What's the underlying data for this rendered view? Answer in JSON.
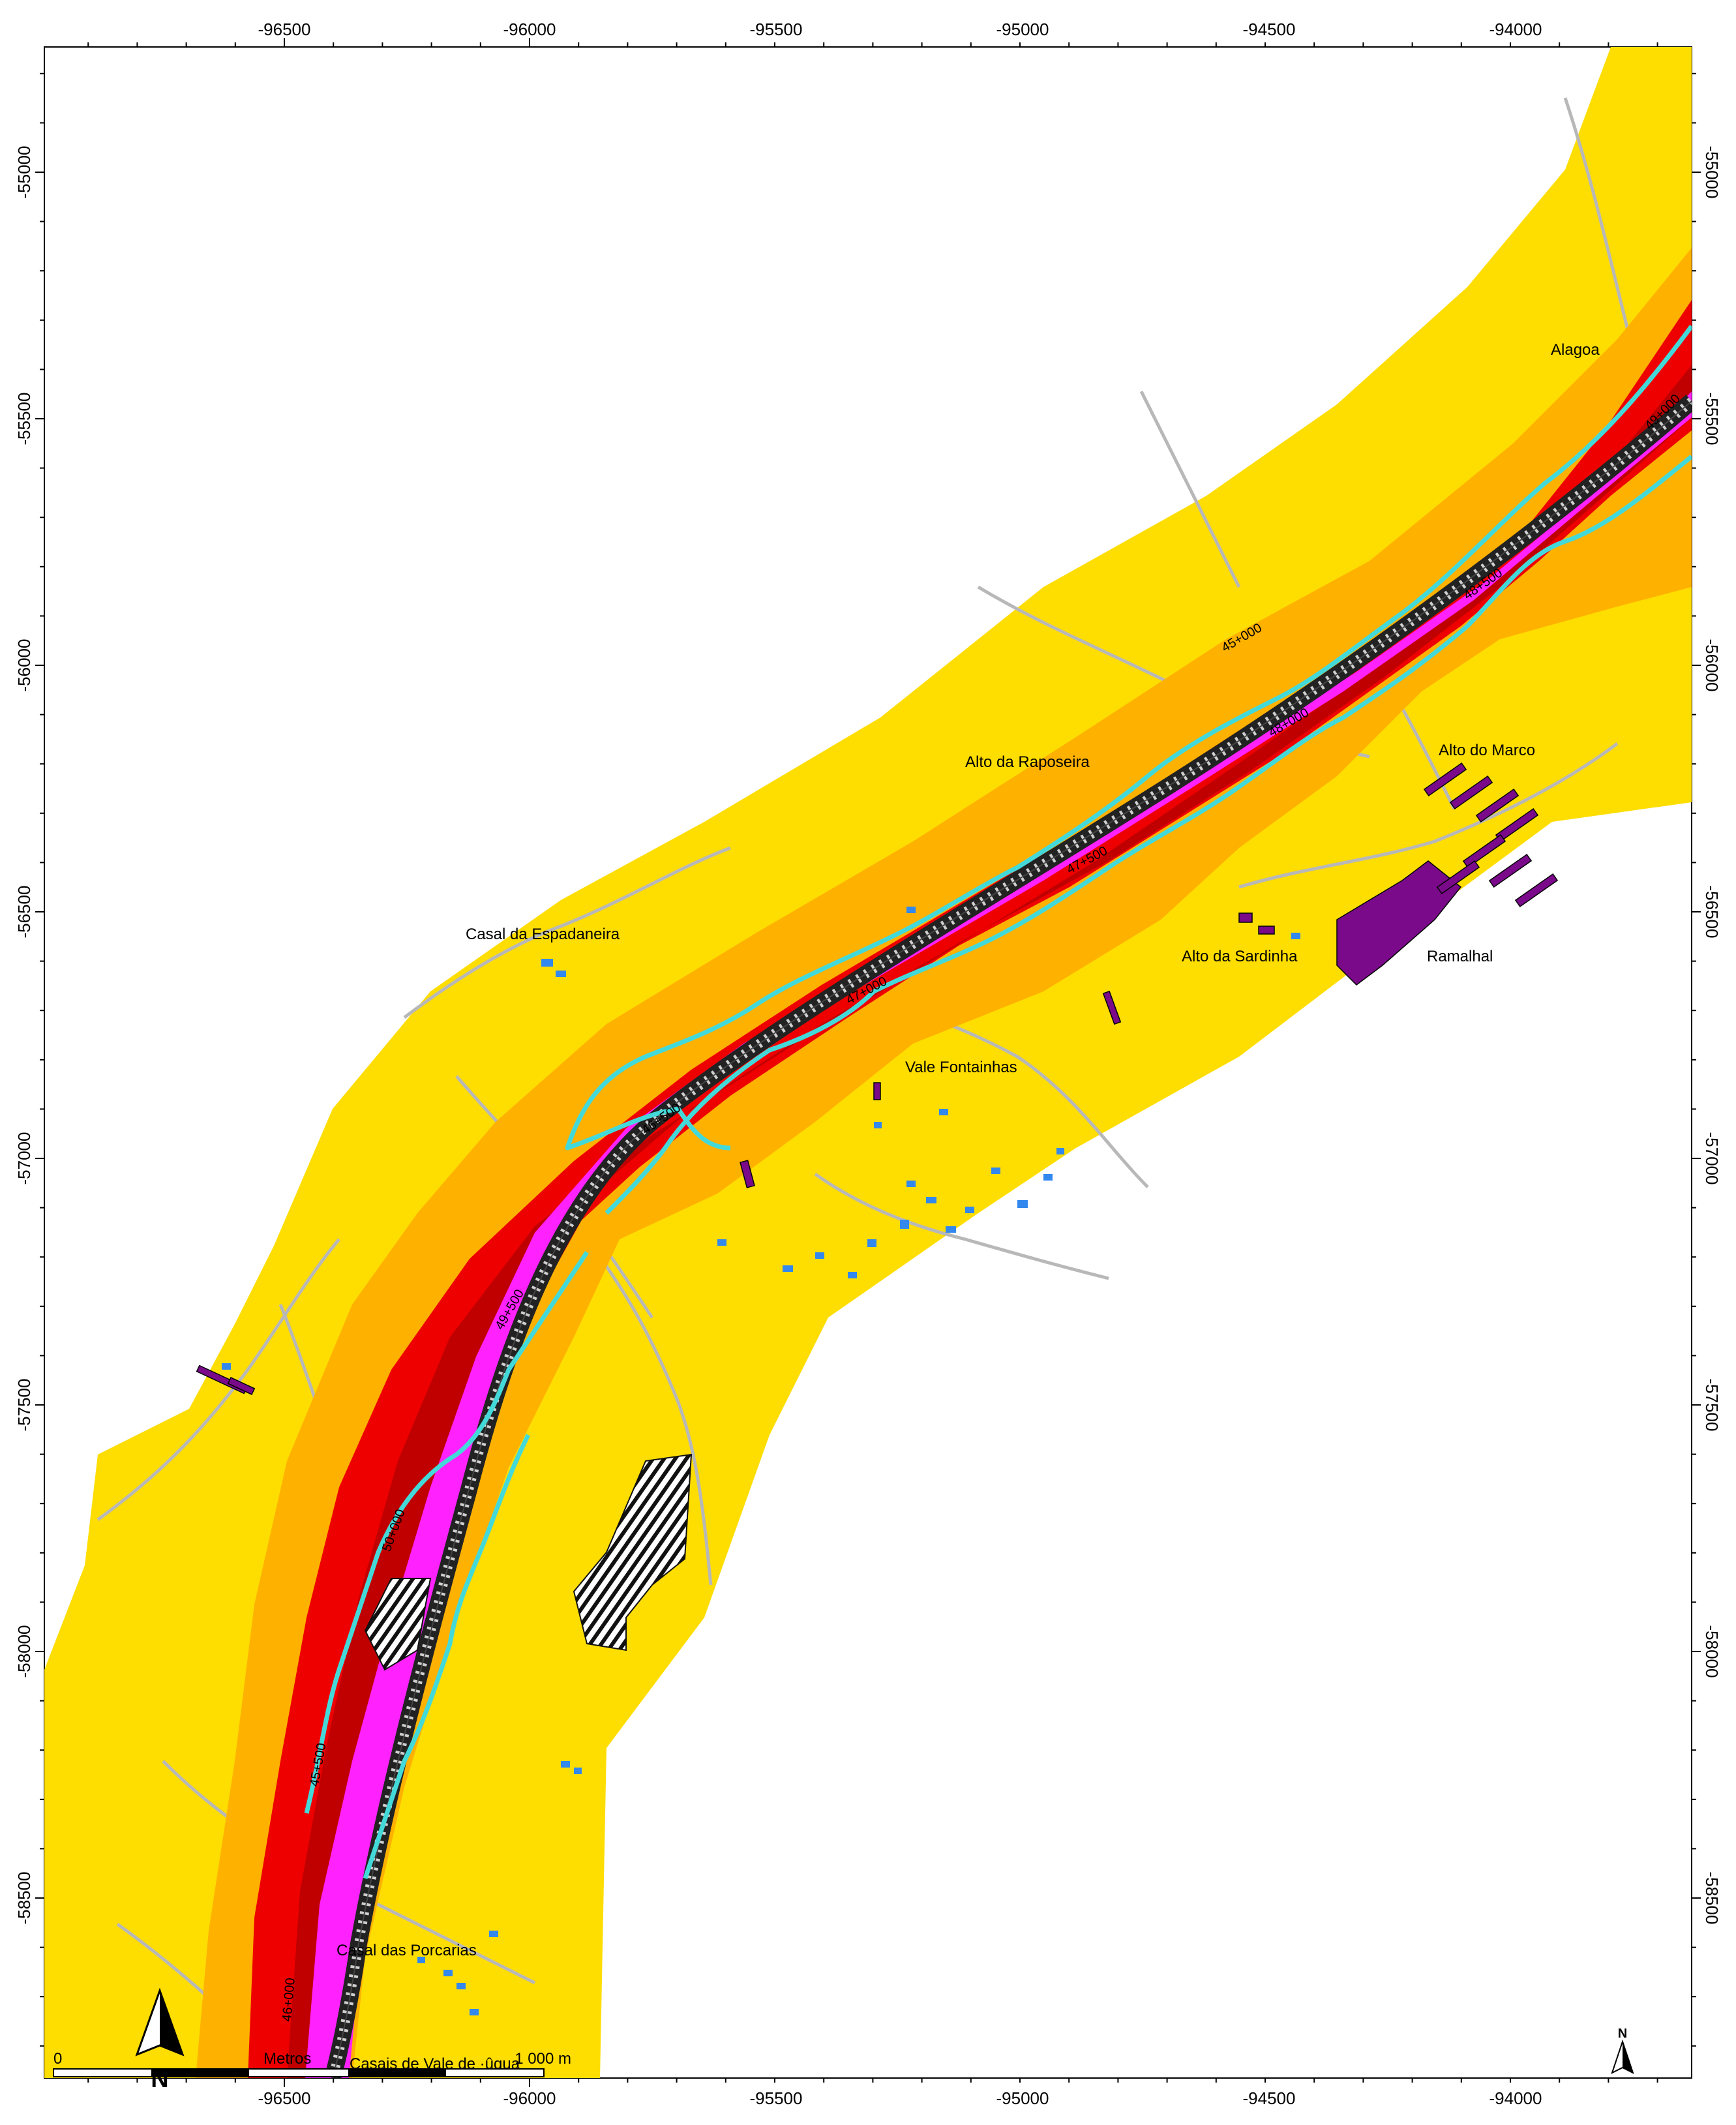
{
  "map": {
    "x_ticks": [
      "-96500",
      "-96000",
      "-95500",
      "-95000",
      "-94500",
      "-94000"
    ],
    "y_ticks": [
      "-55000",
      "-55500",
      "-56000",
      "-56500",
      "-57000",
      "-57500",
      "-58000",
      "-58500"
    ],
    "places": [
      {
        "id": "alagoa",
        "name": "Alagoa"
      },
      {
        "id": "alto-da-raposeira",
        "name": "Alto da Raposeira"
      },
      {
        "id": "alto-do-marco",
        "name": "Alto do Marco"
      },
      {
        "id": "casal-da-espadaneira",
        "name": "Casal da Espadaneira"
      },
      {
        "id": "alto-da-sardinha",
        "name": "Alto da Sardinha"
      },
      {
        "id": "ramalhal",
        "name": "Ramalhal"
      },
      {
        "id": "vale-fontainhas",
        "name": "Vale Fontainhas"
      },
      {
        "id": "casal-das-porcarias",
        "name": "Casal das Porcarias"
      },
      {
        "id": "casais-de-vale-de-agua",
        "name": "Casais de Vale de ·ûgua"
      }
    ],
    "km_markers": [
      "46+500",
      "47+000",
      "47+500",
      "48+000",
      "48+500",
      "49+000",
      "49+500",
      "50+000",
      "45+500",
      "46+000",
      "45+000"
    ],
    "scale_bar": {
      "start": "0",
      "end": "1 000 m",
      "unit_label": "Metros"
    },
    "north_arrow_label": "N",
    "colors": {
      "zone_outer": "#fedd00",
      "zone_orange": "#ffb100",
      "zone_red": "#ee0000",
      "zone_darkred": "#c00000",
      "corridor": "#ff22ff",
      "contour": "#44d9d9",
      "roads": "#b8b8b8",
      "buildings_blue": "#3388ee",
      "buildings_purple": "#7a0a8a"
    }
  }
}
